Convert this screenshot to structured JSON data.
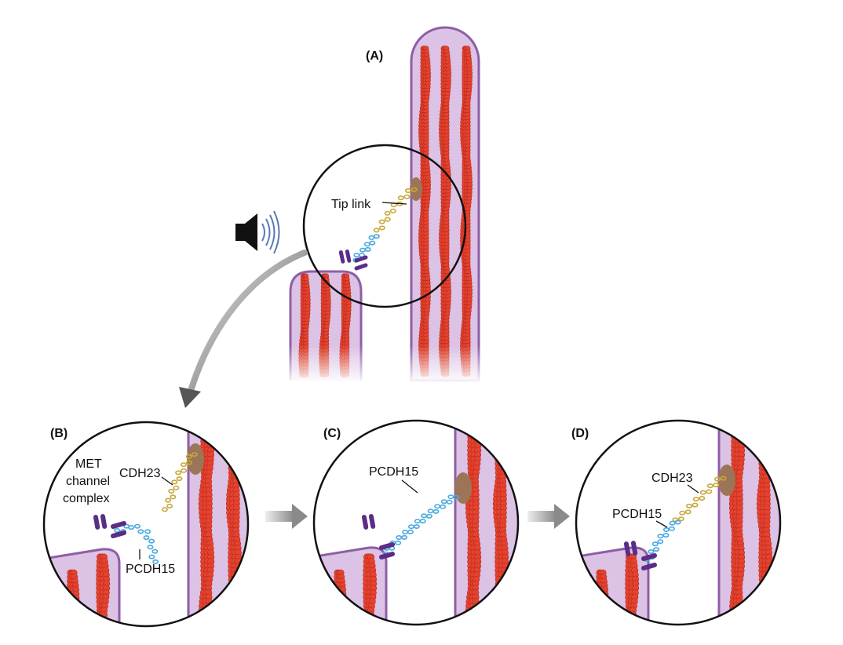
{
  "panels": {
    "a": {
      "label": "(A)"
    },
    "b": {
      "label": "(B)"
    },
    "c": {
      "label": "(C)"
    },
    "d": {
      "label": "(D)"
    }
  },
  "labels": {
    "tip_link": "Tip link",
    "cdh23": "CDH23",
    "pcdh15": "PCDH15",
    "met_line1": "MET",
    "met_line2": "channel",
    "met_line3": "complex"
  },
  "icons": {
    "speaker": "speaker-sound-icon"
  },
  "colors": {
    "stereocilia_fill": "#dcc2e4",
    "stereocilia_edge": "#8e5ea6",
    "actin_red": "#e5432f",
    "cdh23_gold": "#c9a83c",
    "pcdh15_blue": "#49a9e0",
    "met_purple": "#5a2d88",
    "anchor_brown": "#9c7558",
    "arrow_gray": "#9a9a9a"
  }
}
